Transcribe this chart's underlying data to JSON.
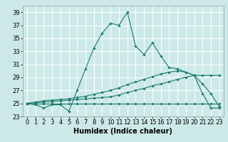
{
  "xlabel": "Humidex (Indice chaleur)",
  "ylabel": "",
  "background_color": "#cce9e8",
  "grid_color": "#ffffff",
  "line_color": "#1a7a6e",
  "xlim": [
    -0.5,
    23.5
  ],
  "ylim": [
    23,
    40
  ],
  "yticks": [
    23,
    25,
    27,
    29,
    31,
    33,
    35,
    37,
    39
  ],
  "xticks": [
    0,
    1,
    2,
    3,
    4,
    5,
    6,
    7,
    8,
    9,
    10,
    11,
    12,
    13,
    14,
    15,
    16,
    17,
    18,
    19,
    20,
    21,
    22,
    23
  ],
  "series": [
    [
      25.0,
      24.8,
      24.3,
      24.8,
      24.8,
      23.8,
      27.0,
      30.3,
      33.5,
      35.8,
      37.3,
      37.0,
      39.0,
      33.8,
      32.5,
      34.3,
      32.3,
      30.5,
      30.3,
      29.8,
      29.3,
      26.5,
      24.3,
      24.3
    ],
    [
      25.0,
      25.0,
      25.0,
      25.0,
      25.0,
      25.0,
      25.0,
      25.0,
      25.0,
      25.0,
      25.0,
      25.0,
      25.0,
      25.0,
      25.0,
      25.0,
      25.0,
      25.0,
      25.0,
      25.0,
      25.0,
      25.0,
      25.0,
      25.0
    ],
    [
      25.0,
      25.1,
      25.2,
      25.3,
      25.4,
      25.5,
      25.6,
      25.7,
      25.8,
      25.9,
      26.0,
      26.3,
      26.7,
      27.0,
      27.3,
      27.7,
      28.0,
      28.3,
      28.7,
      29.0,
      29.3,
      29.3,
      29.3,
      29.3
    ],
    [
      25.0,
      25.2,
      25.4,
      25.5,
      25.6,
      25.7,
      25.9,
      26.1,
      26.4,
      26.7,
      27.0,
      27.4,
      27.9,
      28.3,
      28.7,
      29.1,
      29.5,
      29.8,
      30.0,
      29.8,
      29.3,
      28.0,
      26.5,
      24.5
    ]
  ],
  "title_fontsize": 7,
  "label_fontsize": 7,
  "tick_fontsize": 6
}
